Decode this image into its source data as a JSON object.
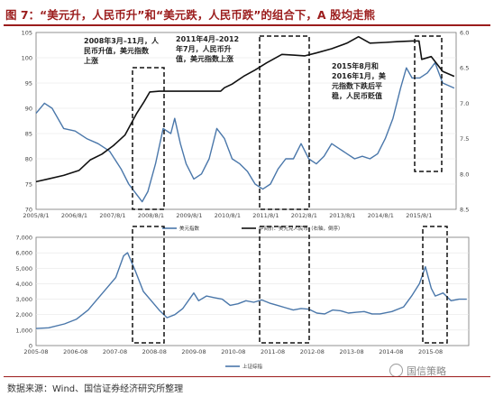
{
  "title": "图 7：“美元升，人民币升”和“美元跌，人民币跌”的组合下，A 股均走熊",
  "source": "数据来源：Wind、国信证券经济研究所整理",
  "watermark": "国信策略",
  "colors": {
    "accent": "#9b1c1c",
    "series_blue": "#4a77aa",
    "series_black": "#111111"
  },
  "chart_data": [
    {
      "type": "line",
      "x_ticks": [
        "2005/8/1",
        "2006/8/1",
        "2007/8/1",
        "2008/8/1",
        "2009/8/1",
        "2010/8/1",
        "2011/8/1",
        "2012/8/1",
        "2013/8/1",
        "2014/8/1",
        "2015/8/1"
      ],
      "ylim_left": [
        70,
        105
      ],
      "yticks_left": [
        "105",
        "100",
        "95",
        "90",
        "85",
        "80",
        "75",
        "70"
      ],
      "ylim_right": [
        8.5,
        6.0
      ],
      "right_axis_inverted": true,
      "yticks_right": [
        "6.0",
        "6.5",
        "7.0",
        "7.5",
        "8.0",
        "8.5"
      ],
      "series": [
        {
          "name": "美元指数",
          "axis": "left",
          "color": "#4a77aa",
          "x": [
            2005.58,
            2005.8,
            2006.0,
            2006.3,
            2006.6,
            2006.9,
            2007.2,
            2007.5,
            2007.8,
            2008.0,
            2008.2,
            2008.35,
            2008.5,
            2008.7,
            2008.9,
            2009.1,
            2009.2,
            2009.35,
            2009.5,
            2009.7,
            2009.9,
            2010.1,
            2010.3,
            2010.5,
            2010.7,
            2010.9,
            2011.1,
            2011.3,
            2011.5,
            2011.7,
            2011.9,
            2012.1,
            2012.3,
            2012.5,
            2012.7,
            2012.9,
            2013.1,
            2013.3,
            2013.5,
            2013.7,
            2013.9,
            2014.1,
            2014.3,
            2014.5,
            2014.7,
            2014.9,
            2015.1,
            2015.25,
            2015.4,
            2015.6,
            2015.8,
            2016.0,
            2016.2,
            2016.5
          ],
          "y": [
            89,
            91,
            90,
            86,
            85.5,
            84,
            83,
            81.5,
            78,
            75,
            73,
            71.5,
            73.5,
            79,
            86,
            85,
            88,
            83,
            79,
            76,
            77,
            80,
            86,
            84,
            80,
            79,
            77.5,
            75,
            74,
            75,
            78,
            80,
            80,
            83,
            80,
            79,
            80.5,
            83,
            82,
            81,
            80,
            80.5,
            80,
            81,
            84,
            88,
            94,
            98,
            96,
            96,
            97,
            99,
            95,
            94
          ]
        },
        {
          "name": "中间价：美元兑人民币（右轴，倒序）",
          "axis": "right",
          "color": "#111111",
          "x": [
            2005.58,
            2005.9,
            2006.3,
            2006.7,
            2007.0,
            2007.3,
            2007.6,
            2007.9,
            2008.2,
            2008.4,
            2008.55,
            2008.8,
            2009.2,
            2009.6,
            2010.0,
            2010.4,
            2010.5,
            2010.7,
            2011.0,
            2011.3,
            2011.6,
            2012.0,
            2012.3,
            2012.6,
            2012.9,
            2013.3,
            2013.7,
            2014.0,
            2014.3,
            2014.7,
            2015.0,
            2015.4,
            2015.58,
            2015.65,
            2015.9,
            2016.2,
            2016.5
          ],
          "y": [
            8.11,
            8.07,
            8.02,
            7.95,
            7.8,
            7.72,
            7.6,
            7.45,
            7.15,
            6.98,
            6.84,
            6.83,
            6.83,
            6.83,
            6.83,
            6.83,
            6.78,
            6.73,
            6.62,
            6.53,
            6.43,
            6.31,
            6.32,
            6.33,
            6.29,
            6.23,
            6.15,
            6.06,
            6.15,
            6.14,
            6.13,
            6.12,
            6.12,
            6.38,
            6.34,
            6.55,
            6.62
          ]
        }
      ],
      "annotations": [
        [
          "2008年3月–11月，人",
          "民币升值，美元指数",
          "上涨"
        ],
        [
          "2011年4月–2012",
          "年7月，人民币升",
          "值，美元指数上涨"
        ],
        [
          "2015年8月和",
          "2016年1月，美",
          "元指数下跌后平",
          "稳，人民币贬值"
        ]
      ]
    },
    {
      "type": "line",
      "x_ticks": [
        "2005-08",
        "2006-08",
        "2007-08",
        "2008-08",
        "2009-08",
        "2010-08",
        "2011-08",
        "2012-08",
        "2013-08",
        "2014-08",
        "2015-08"
      ],
      "ylim": [
        0,
        7000
      ],
      "yticks": [
        "7,000",
        "6,000",
        "5,000",
        "4,000",
        "3,000",
        "2,000",
        "1,000",
        "0"
      ],
      "series": [
        {
          "name": "上证综指",
          "color": "#4a77aa",
          "x": [
            2005.58,
            2005.9,
            2006.3,
            2006.6,
            2006.9,
            2007.1,
            2007.4,
            2007.6,
            2007.8,
            2007.9,
            2008.1,
            2008.3,
            2008.5,
            2008.7,
            2008.9,
            2009.1,
            2009.3,
            2009.58,
            2009.7,
            2009.9,
            2010.1,
            2010.3,
            2010.5,
            2010.7,
            2010.9,
            2011.1,
            2011.3,
            2011.5,
            2011.7,
            2011.9,
            2012.1,
            2012.3,
            2012.5,
            2012.7,
            2012.9,
            2013.1,
            2013.3,
            2013.5,
            2013.7,
            2013.9,
            2014.1,
            2014.3,
            2014.6,
            2014.9,
            2015.1,
            2015.3,
            2015.45,
            2015.6,
            2015.7,
            2015.9,
            2016.1,
            2016.3,
            2016.5
          ],
          "y": [
            1100,
            1150,
            1400,
            1700,
            2300,
            2900,
            3800,
            4400,
            5800,
            6000,
            4800,
            3500,
            2900,
            2300,
            1800,
            2000,
            2400,
            3400,
            2900,
            3200,
            3100,
            3000,
            2600,
            2700,
            2900,
            2800,
            2950,
            2750,
            2600,
            2450,
            2300,
            2400,
            2350,
            2100,
            2050,
            2300,
            2250,
            2100,
            2150,
            2200,
            2050,
            2050,
            2200,
            2500,
            3200,
            4000,
            5100,
            3700,
            3200,
            3400,
            2900,
            3000,
            3000
          ]
        }
      ]
    }
  ]
}
